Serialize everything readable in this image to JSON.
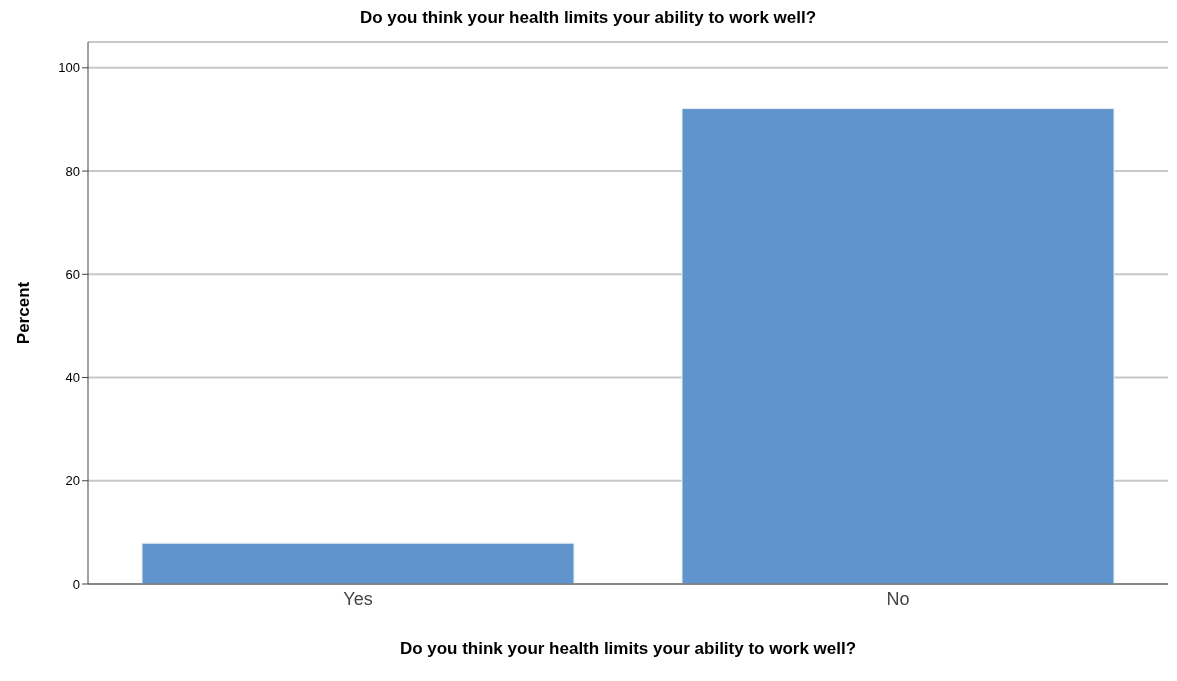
{
  "chart_data": {
    "type": "bar",
    "title": "Do you think your health limits your ability to work well?",
    "xlabel": "Do you think your health limits your ability to work well?",
    "ylabel": "Percent",
    "categories": [
      "Yes",
      "No"
    ],
    "values": [
      7.9,
      92.1
    ],
    "color": "#5f94cc",
    "ylim": [
      0,
      105
    ],
    "yticks": [
      0,
      20,
      40,
      60,
      80,
      100
    ],
    "grid": "y"
  }
}
